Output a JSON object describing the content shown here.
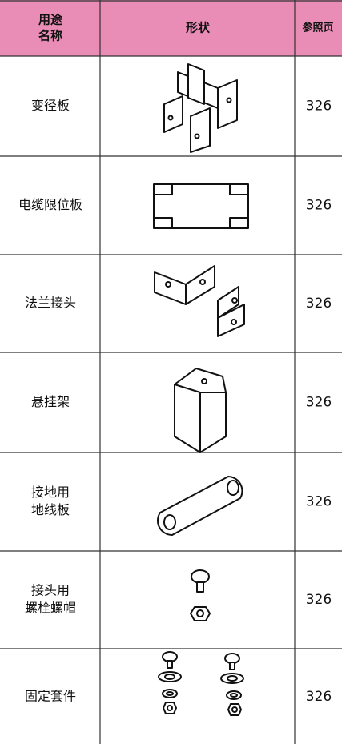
{
  "header": {
    "name": [
      "用途",
      "名称"
    ],
    "shape": "形状",
    "page": "参照页"
  },
  "rows": [
    {
      "name": [
        "变径板"
      ],
      "page": 326
    },
    {
      "name": [
        "电缆限位板"
      ],
      "page": 326
    },
    {
      "name": [
        "法兰接头"
      ],
      "page": 326
    },
    {
      "name": [
        "悬挂架"
      ],
      "page": 326
    },
    {
      "name": [
        "接地用",
        "地线板"
      ],
      "page": 326
    },
    {
      "name": [
        "接头用",
        "螺栓螺帽"
      ],
      "page": 326
    },
    {
      "name": [
        "固定套件"
      ],
      "page": 326
    }
  ]
}
